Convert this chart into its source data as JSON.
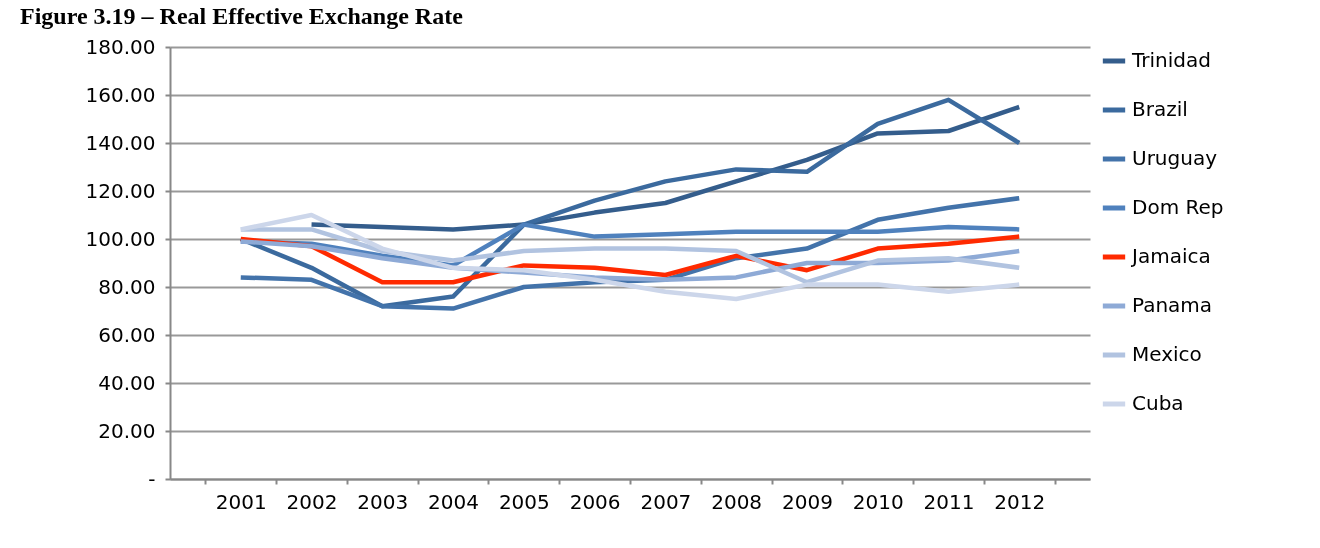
{
  "chart_data": {
    "type": "line",
    "title": "Figure 3.19 – Real Effective Exchange Rate",
    "categories": [
      "2001",
      "2002",
      "2003",
      "2004",
      "2005",
      "2006",
      "2007",
      "2008",
      "2009",
      "2010",
      "2011",
      "2012"
    ],
    "series": [
      {
        "name": "Trinidad",
        "color": "#345d8c",
        "values": [
          null,
          106,
          105,
          104,
          106,
          111,
          115,
          124,
          133,
          144,
          145,
          155
        ]
      },
      {
        "name": "Brazil",
        "color": "#3b6a9e",
        "values": [
          100,
          88,
          72,
          76,
          106,
          116,
          124,
          129,
          128,
          148,
          158,
          140
        ]
      },
      {
        "name": "Uruguay",
        "color": "#4373aa",
        "values": [
          84,
          83,
          72,
          71,
          80,
          82,
          83,
          92,
          96,
          108,
          113,
          117
        ]
      },
      {
        "name": "Dom Rep",
        "color": "#4f81bd",
        "values": [
          99,
          98,
          93,
          89,
          106,
          101,
          102,
          103,
          103,
          103,
          105,
          104
        ]
      },
      {
        "name": "Jamaica",
        "color": "#ff2a00",
        "values": [
          100,
          97,
          82,
          82,
          89,
          88,
          85,
          93,
          87,
          96,
          98,
          101
        ]
      },
      {
        "name": "Panama",
        "color": "#8eaad6",
        "values": [
          99,
          97,
          92,
          88,
          86,
          84,
          83,
          84,
          90,
          90,
          91,
          95
        ]
      },
      {
        "name": "Mexico",
        "color": "#b1c3e0",
        "values": [
          104,
          104,
          95,
          91,
          95,
          96,
          96,
          95,
          82,
          91,
          92,
          88
        ]
      },
      {
        "name": "Cuba",
        "color": "#ccd6ea",
        "values": [
          104,
          110,
          96,
          88,
          87,
          83,
          78,
          75,
          81,
          81,
          78,
          81
        ]
      }
    ],
    "ylim": [
      0,
      180
    ],
    "yticks": [
      {
        "value": 0,
        "label": "-"
      },
      {
        "value": 20,
        "label": "20.00"
      },
      {
        "value": 40,
        "label": "40.00"
      },
      {
        "value": 60,
        "label": "60.00"
      },
      {
        "value": 80,
        "label": "80.00"
      },
      {
        "value": 100,
        "label": "100.00"
      },
      {
        "value": 120,
        "label": "120.00"
      },
      {
        "value": 140,
        "label": "140.00"
      },
      {
        "value": 160,
        "label": "160.00"
      },
      {
        "value": 180,
        "label": "180.00"
      }
    ],
    "grid": "y",
    "legend": "right",
    "marker": "none",
    "line_style": "solid"
  }
}
